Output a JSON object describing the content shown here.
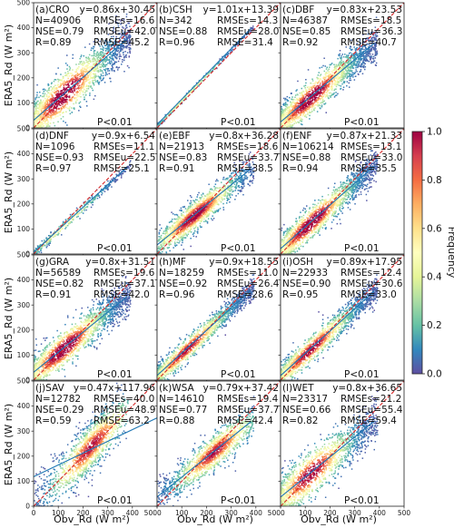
{
  "figure": {
    "y_axis_label": "ERA5_Rd (W m²)",
    "x_axis_label": "Obv_Rd (W m²)",
    "colorbar_label": "Frequency",
    "colorbar_ticks": [
      "0.0",
      "0.2",
      "0.4",
      "0.6",
      "0.8",
      "1.0"
    ]
  },
  "chart_data": {
    "type": "scatter",
    "density_colored": true,
    "axis_range": [
      0,
      500
    ],
    "tick_values": [
      0,
      100,
      200,
      300,
      400,
      500
    ],
    "colormap": "Spectral_r",
    "one_to_one_line_color": "#d62728",
    "fit_line_color": "#1f77b4",
    "panels": [
      {
        "id": "CRO",
        "label": "(a)CRO",
        "equation": "y=0.86x+30.45",
        "N": "N=40906",
        "NSE": "NSE=0.79",
        "R": "R=0.89",
        "RMSEs": "RMSEs=16.6",
        "RMSEu": "RMSEu=42.0",
        "RMSE": "RMSE=45.2",
        "P": "P<0.01",
        "slope": 0.86,
        "intercept": 30.45,
        "spread": 60,
        "dens": 1.0
      },
      {
        "id": "CSH",
        "label": "(b)CSH",
        "equation": "y=1.01x+13.39",
        "N": "N=342",
        "NSE": "NSE=0.88",
        "R": "R=0.96",
        "RMSEs": "RMSEs=14.3",
        "RMSEu": "RMSEu=28.0",
        "RMSE": "RMSE=31.4",
        "P": "P<0.01",
        "slope": 1.01,
        "intercept": 13.39,
        "spread": 6,
        "dens": 0.05
      },
      {
        "id": "DBF",
        "label": "(c)DBF",
        "equation": "y=0.83x+23.53",
        "N": "N=46387",
        "NSE": "NSE=0.85",
        "R": "R=0.92",
        "RMSEs": "RMSEs=18.5",
        "RMSEu": "RMSEu=36.3",
        "RMSE": "RMSE=40.7",
        "P": "P<0.01",
        "slope": 0.83,
        "intercept": 23.53,
        "spread": 45,
        "dens": 1.0
      },
      {
        "id": "DNF",
        "label": "(d)DNF",
        "equation": "y=0.9x+6.54",
        "N": "N=1096",
        "NSE": "NSE=0.93",
        "R": "R=0.97",
        "RMSEs": "RMSEs=11.1",
        "RMSEu": "RMSEu=22.5",
        "RMSE": "RMSE=25.1",
        "P": "P<0.01",
        "slope": 0.9,
        "intercept": 6.54,
        "spread": 12,
        "dens": 0.12
      },
      {
        "id": "EBF",
        "label": "(e)EBF",
        "equation": "y=0.8x+36.28",
        "N": "N=21913",
        "NSE": "NSE=0.83",
        "R": "R=0.91",
        "RMSEs": "RMSEs=18.6",
        "RMSEu": "RMSEu=33.7",
        "RMSE": "RMSE=38.5",
        "P": "P<0.01",
        "slope": 0.8,
        "intercept": 36.28,
        "spread": 38,
        "dens": 0.9
      },
      {
        "id": "ENF",
        "label": "(f)ENF",
        "equation": "y=0.87x+21.33",
        "N": "N=106214",
        "NSE": "NSE=0.88",
        "R": "R=0.94",
        "RMSEs": "RMSEs=13.1",
        "RMSEu": "RMSEu=33.0",
        "RMSE": "RMSE=35.5",
        "P": "P<0.01",
        "slope": 0.87,
        "intercept": 21.33,
        "spread": 42,
        "dens": 1.0
      },
      {
        "id": "GRA",
        "label": "(g)GRA",
        "equation": "y=0.8x+31.51",
        "N": "N=56589",
        "NSE": "NSE=0.82",
        "R": "R=0.91",
        "RMSEs": "RMSEs=19.6",
        "RMSEu": "RMSEu=37.1",
        "RMSE": "RMSE=42.0",
        "P": "P<0.01",
        "slope": 0.8,
        "intercept": 31.51,
        "spread": 48,
        "dens": 1.0
      },
      {
        "id": "MF",
        "label": "(h)MF",
        "equation": "y=0.9x+18.55",
        "N": "N=18259",
        "NSE": "NSE=0.92",
        "R": "R=0.96",
        "RMSEs": "RMSEs=11.0",
        "RMSEu": "RMSEu=26.4",
        "RMSE": "RMSE=28.6",
        "P": "P<0.01",
        "slope": 0.9,
        "intercept": 18.55,
        "spread": 30,
        "dens": 0.8
      },
      {
        "id": "OSH",
        "label": "(i)OSH",
        "equation": "y=0.89x+17.95",
        "N": "N=22933",
        "NSE": "NSE=0.90",
        "R": "R=0.95",
        "RMSEs": "RMSEs=12.4",
        "RMSEu": "RMSEu=30.6",
        "RMSE": "RMSE=33.0",
        "P": "P<0.01",
        "slope": 0.89,
        "intercept": 17.95,
        "spread": 35,
        "dens": 0.85
      },
      {
        "id": "SAV",
        "label": "(j)SAV",
        "equation": "y=0.47x+117.96",
        "N": "N=12782",
        "NSE": "NSE=0.29",
        "R": "R=0.59",
        "RMSEs": "RMSEs=40.0",
        "RMSEu": "RMSEu=48.9",
        "RMSE": "RMSE=63.2",
        "P": "P<0.01",
        "slope": 0.47,
        "intercept": 117.96,
        "spread": 55,
        "dens": 0.75
      },
      {
        "id": "WSA",
        "label": "(k)WSA",
        "equation": "y=0.79x+37.42",
        "N": "N=14610",
        "NSE": "NSE=0.77",
        "R": "R=0.88",
        "RMSEs": "RMSEs=19.4",
        "RMSEu": "RMSEu=37.7",
        "RMSE": "RMSE=42.4",
        "P": "P<0.01",
        "slope": 0.79,
        "intercept": 37.42,
        "spread": 45,
        "dens": 0.75
      },
      {
        "id": "WET",
        "label": "(l)WET",
        "equation": "y=0.8x+36.65",
        "N": "N=23317",
        "NSE": "NSE=0.66",
        "R": "R=0.82",
        "RMSEs": "RMSEs=21.2",
        "RMSEu": "RMSEu=55.4",
        "RMSE": "RMSE=59.4",
        "P": "P<0.01",
        "slope": 0.8,
        "intercept": 36.65,
        "spread": 60,
        "dens": 0.85
      }
    ]
  }
}
